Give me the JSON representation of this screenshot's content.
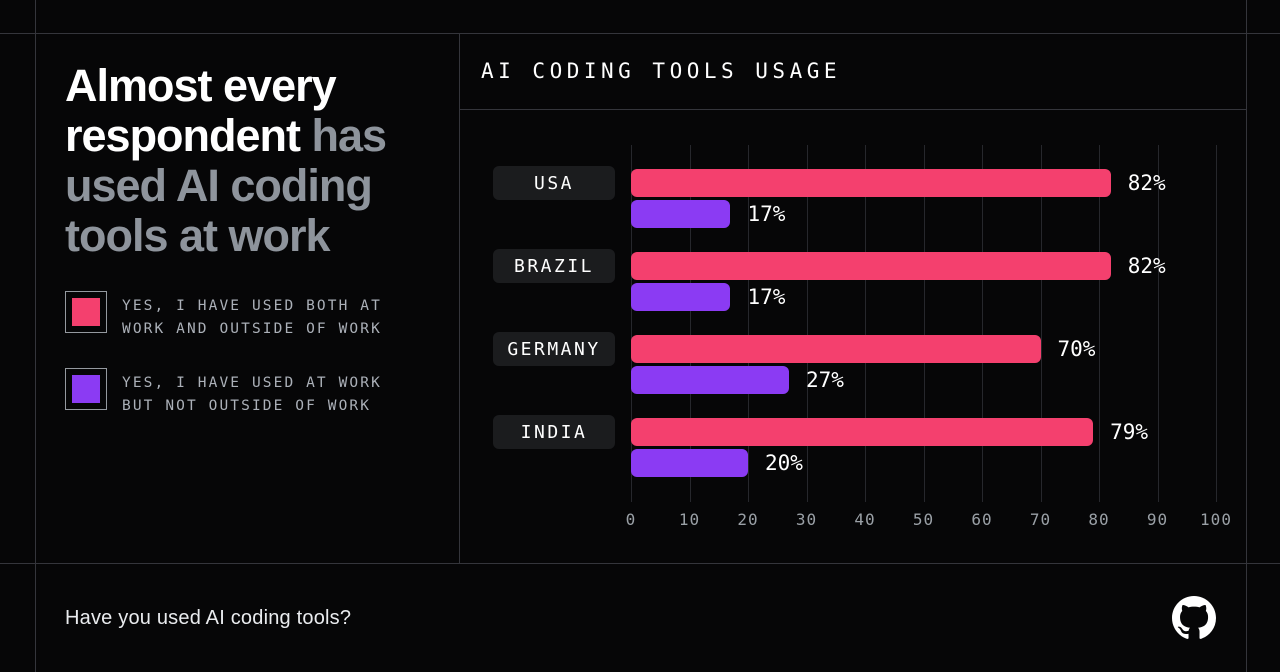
{
  "colors": {
    "background": "#060607",
    "frame_line": "#34353b",
    "grid_line": "#26272c",
    "headline_white": "#ffffff",
    "headline_gray": "#8e949c",
    "legend_text": "#abb0b8",
    "series_pink": "#f4406e",
    "series_purple": "#8b3bf3",
    "chip_bg": "#1b1c1e",
    "tick_text": "#9aa0a6",
    "footer_text": "#e9ebee"
  },
  "headline": {
    "segment_primary": "Almost every respondent",
    "segment_secondary": " has used AI coding tools at work"
  },
  "legend": {
    "items": [
      {
        "swatch_color": "#f4406e",
        "lines": [
          "YES, I HAVE USED BOTH AT",
          "WORK AND OUTSIDE OF WORK"
        ]
      },
      {
        "swatch_color": "#8b3bf3",
        "lines": [
          "YES, I HAVE USED AT WORK",
          "BUT NOT OUTSIDE OF WORK"
        ]
      }
    ]
  },
  "chart_data": {
    "type": "bar",
    "orientation": "horizontal",
    "title": "AI CODING TOOLS USAGE",
    "categories": [
      "USA",
      "BRAZIL",
      "GERMANY",
      "INDIA"
    ],
    "series": [
      {
        "name": "YES, I HAVE USED BOTH AT WORK AND OUTSIDE OF WORK",
        "color": "#f4406e",
        "values": [
          82,
          82,
          70,
          79
        ]
      },
      {
        "name": "YES, I HAVE USED AT WORK BUT NOT OUTSIDE OF WORK",
        "color": "#8b3bf3",
        "values": [
          17,
          17,
          27,
          20
        ]
      }
    ],
    "value_labels": [
      [
        "82%",
        "17%"
      ],
      [
        "82%",
        "17%"
      ],
      [
        "70%",
        "27%"
      ],
      [
        "79%",
        "20%"
      ]
    ],
    "xlim": [
      0,
      100
    ],
    "x_ticks": [
      "0",
      "10",
      "20",
      "30",
      "40",
      "50",
      "60",
      "70",
      "80",
      "90",
      "100"
    ],
    "grid": true,
    "legend_position": "left panel"
  },
  "footer": {
    "question": "Have you used AI coding tools?",
    "logo": "github-octocat-mark"
  }
}
